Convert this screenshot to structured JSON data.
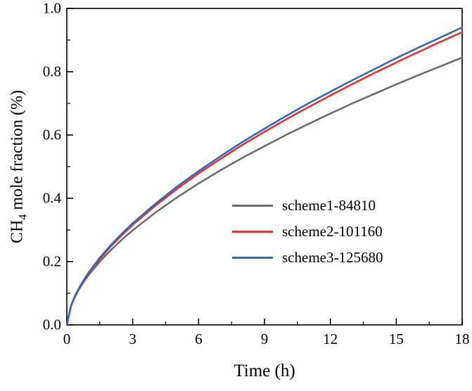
{
  "chart_data": {
    "type": "line",
    "title": "",
    "xlabel": "Time (h)",
    "ylabel": "CH4 mole fraction (%)",
    "xlim": [
      0,
      18
    ],
    "ylim": [
      0,
      1.0
    ],
    "grid": false,
    "legend_position": "inside center-right",
    "x_ticks": [
      0,
      3,
      6,
      9,
      12,
      15,
      18
    ],
    "x_tick_labels": [
      "0",
      "3",
      "6",
      "9",
      "12",
      "15",
      "18"
    ],
    "x_minor_step": 1.5,
    "y_ticks": [
      0,
      0.2,
      0.4,
      0.6,
      0.8,
      1.0
    ],
    "y_tick_labels": [
      "0.0",
      "0.2",
      "0.4",
      "0.6",
      "0.8",
      "1.0"
    ],
    "y_minor_step": 0.1,
    "x": [
      0,
      0.2,
      0.4,
      0.6,
      0.8,
      1,
      1.5,
      2,
      2.5,
      3,
      4,
      5,
      6,
      7,
      8,
      9,
      10,
      11,
      12,
      13,
      14,
      15,
      16,
      17,
      18
    ],
    "series": [
      {
        "name": "scheme1-84810",
        "color": "#6d6d6d",
        "values": [
          0,
          0.062,
          0.093,
          0.118,
          0.139,
          0.158,
          0.2,
          0.236,
          0.269,
          0.299,
          0.353,
          0.402,
          0.447,
          0.489,
          0.528,
          0.565,
          0.601,
          0.635,
          0.668,
          0.7,
          0.73,
          0.76,
          0.789,
          0.817,
          0.845
        ]
      },
      {
        "name": "scheme2-101160",
        "color": "#e8312b",
        "values": [
          0,
          0.062,
          0.094,
          0.12,
          0.143,
          0.163,
          0.208,
          0.248,
          0.283,
          0.316,
          0.375,
          0.429,
          0.479,
          0.525,
          0.569,
          0.61,
          0.65,
          0.688,
          0.725,
          0.761,
          0.796,
          0.829,
          0.862,
          0.894,
          0.925
        ]
      },
      {
        "name": "scheme3-125680",
        "color": "#3566bd",
        "values": [
          0,
          0.063,
          0.096,
          0.122,
          0.145,
          0.166,
          0.212,
          0.252,
          0.288,
          0.321,
          0.381,
          0.436,
          0.486,
          0.533,
          0.578,
          0.62,
          0.661,
          0.7,
          0.737,
          0.773,
          0.808,
          0.843,
          0.876,
          0.908,
          0.94
        ]
      }
    ]
  },
  "labels": {
    "ylabel_prefix": "CH",
    "ylabel_sub": "4",
    "ylabel_suffix": " mole fraction (%)",
    "xlabel": "Time (h)"
  },
  "style": {
    "axis_color": "#000000",
    "background": "#ffffff",
    "line_width": 2.6
  }
}
